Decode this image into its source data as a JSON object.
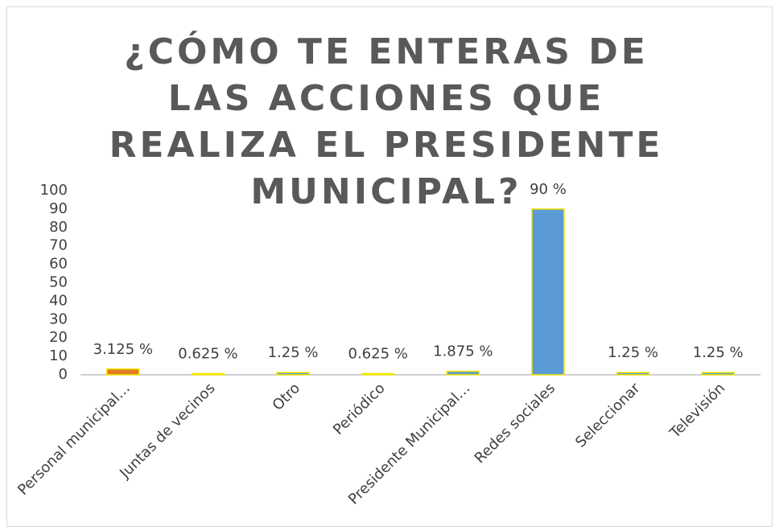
{
  "chart_data": {
    "type": "bar",
    "title": "¿CÓMO TE ENTERAS DE LAS ACCIONES QUE REALIZA EL PRESIDENTE MUNICIPAL?",
    "categories": [
      "Personal municipal…",
      "Juntas de vecinos",
      "Otro",
      "Periódico",
      "Presidente Municipal…",
      "Redes sociales",
      "Seleccionar",
      "Televisión"
    ],
    "values": [
      3.125,
      0.625,
      1.25,
      0.625,
      1.875,
      90,
      1.25,
      1.25
    ],
    "value_labels": [
      "3.125 %",
      "0.625 %",
      "1.25 %",
      "0.625 %",
      "1.875 %",
      "90 %",
      "1.25 %",
      "1.25 %"
    ],
    "colors": [
      "#e07b1f",
      "#5b9bd5",
      "#5b9bd5",
      "#5b9bd5",
      "#5b9bd5",
      "#5b9bd5",
      "#5b9bd5",
      "#5b9bd5"
    ],
    "edgecolor": "#f2e600",
    "ylim": [
      0,
      100
    ],
    "yticks": [
      0,
      10,
      20,
      30,
      40,
      50,
      60,
      70,
      80,
      90,
      100
    ],
    "grid": false
  }
}
